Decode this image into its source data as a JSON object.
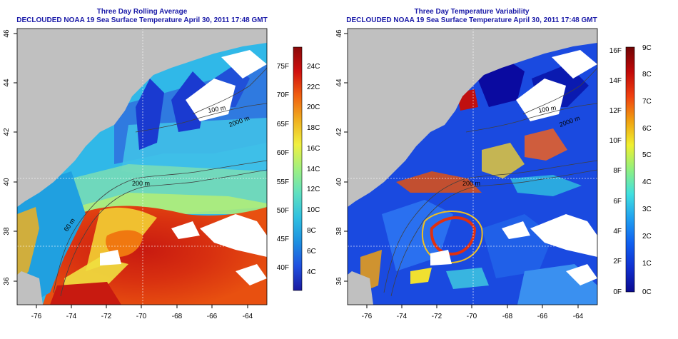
{
  "panels": [
    {
      "title": "Three Day Rolling Average",
      "subtitle": "DECLOUDED NOAA 19 Sea Surface Temperature April 30, 2011 17:48 GMT",
      "x_ticks": [
        "-76",
        "-74",
        "-72",
        "-70",
        "-68",
        "-66",
        "-64"
      ],
      "y_ticks": [
        "36",
        "38",
        "40",
        "42",
        "44",
        "46"
      ],
      "contour_labels": [
        "100 m",
        "2000 m",
        "200 m",
        "60 m"
      ],
      "colorbar": {
        "left_labels": [
          "75F",
          "70F",
          "65F",
          "60F",
          "55F",
          "50F",
          "45F",
          "40F"
        ],
        "right_labels": [
          "24C",
          "22C",
          "20C",
          "18C",
          "16C",
          "14C",
          "12C",
          "10C",
          "8C",
          "6C",
          "4C"
        ],
        "scale": "temperature"
      }
    },
    {
      "title": "Three Day Temperature Variability",
      "subtitle": "DECLOUDED NOAA 19 Sea Surface Temperature April 30, 2011 17:48 GMT",
      "x_ticks": [
        "-76",
        "-74",
        "-72",
        "-70",
        "-68",
        "-66",
        "-64"
      ],
      "y_ticks": [
        "36",
        "38",
        "40",
        "42",
        "44",
        "46"
      ],
      "contour_labels": [
        "100 m",
        "2000 m",
        "200 m"
      ],
      "colorbar": {
        "left_labels": [
          "16F",
          "14F",
          "12F",
          "10F",
          "8F",
          "6F",
          "4F",
          "2F",
          "0F"
        ],
        "right_labels": [
          "9C",
          "8C",
          "7C",
          "6C",
          "5C",
          "4C",
          "3C",
          "2C",
          "1C",
          "0C"
        ],
        "scale": "variability"
      }
    }
  ],
  "colors": {
    "land": "#c0c0c0",
    "cloud": "#ffffff",
    "title": "#1a1aa8",
    "temperature_scale": [
      "#1a1aa0",
      "#2050e0",
      "#1e90e0",
      "#30c0e0",
      "#60e0c0",
      "#a0f080",
      "#f0f040",
      "#f0b020",
      "#f06010",
      "#d01010",
      "#8a0a0a"
    ],
    "variability_scale": [
      "#0a0a90",
      "#1030d0",
      "#1060f0",
      "#20a0f0",
      "#40e0e0",
      "#90f080",
      "#f0f030",
      "#f0a010",
      "#f04010",
      "#c00808",
      "#700404"
    ]
  }
}
